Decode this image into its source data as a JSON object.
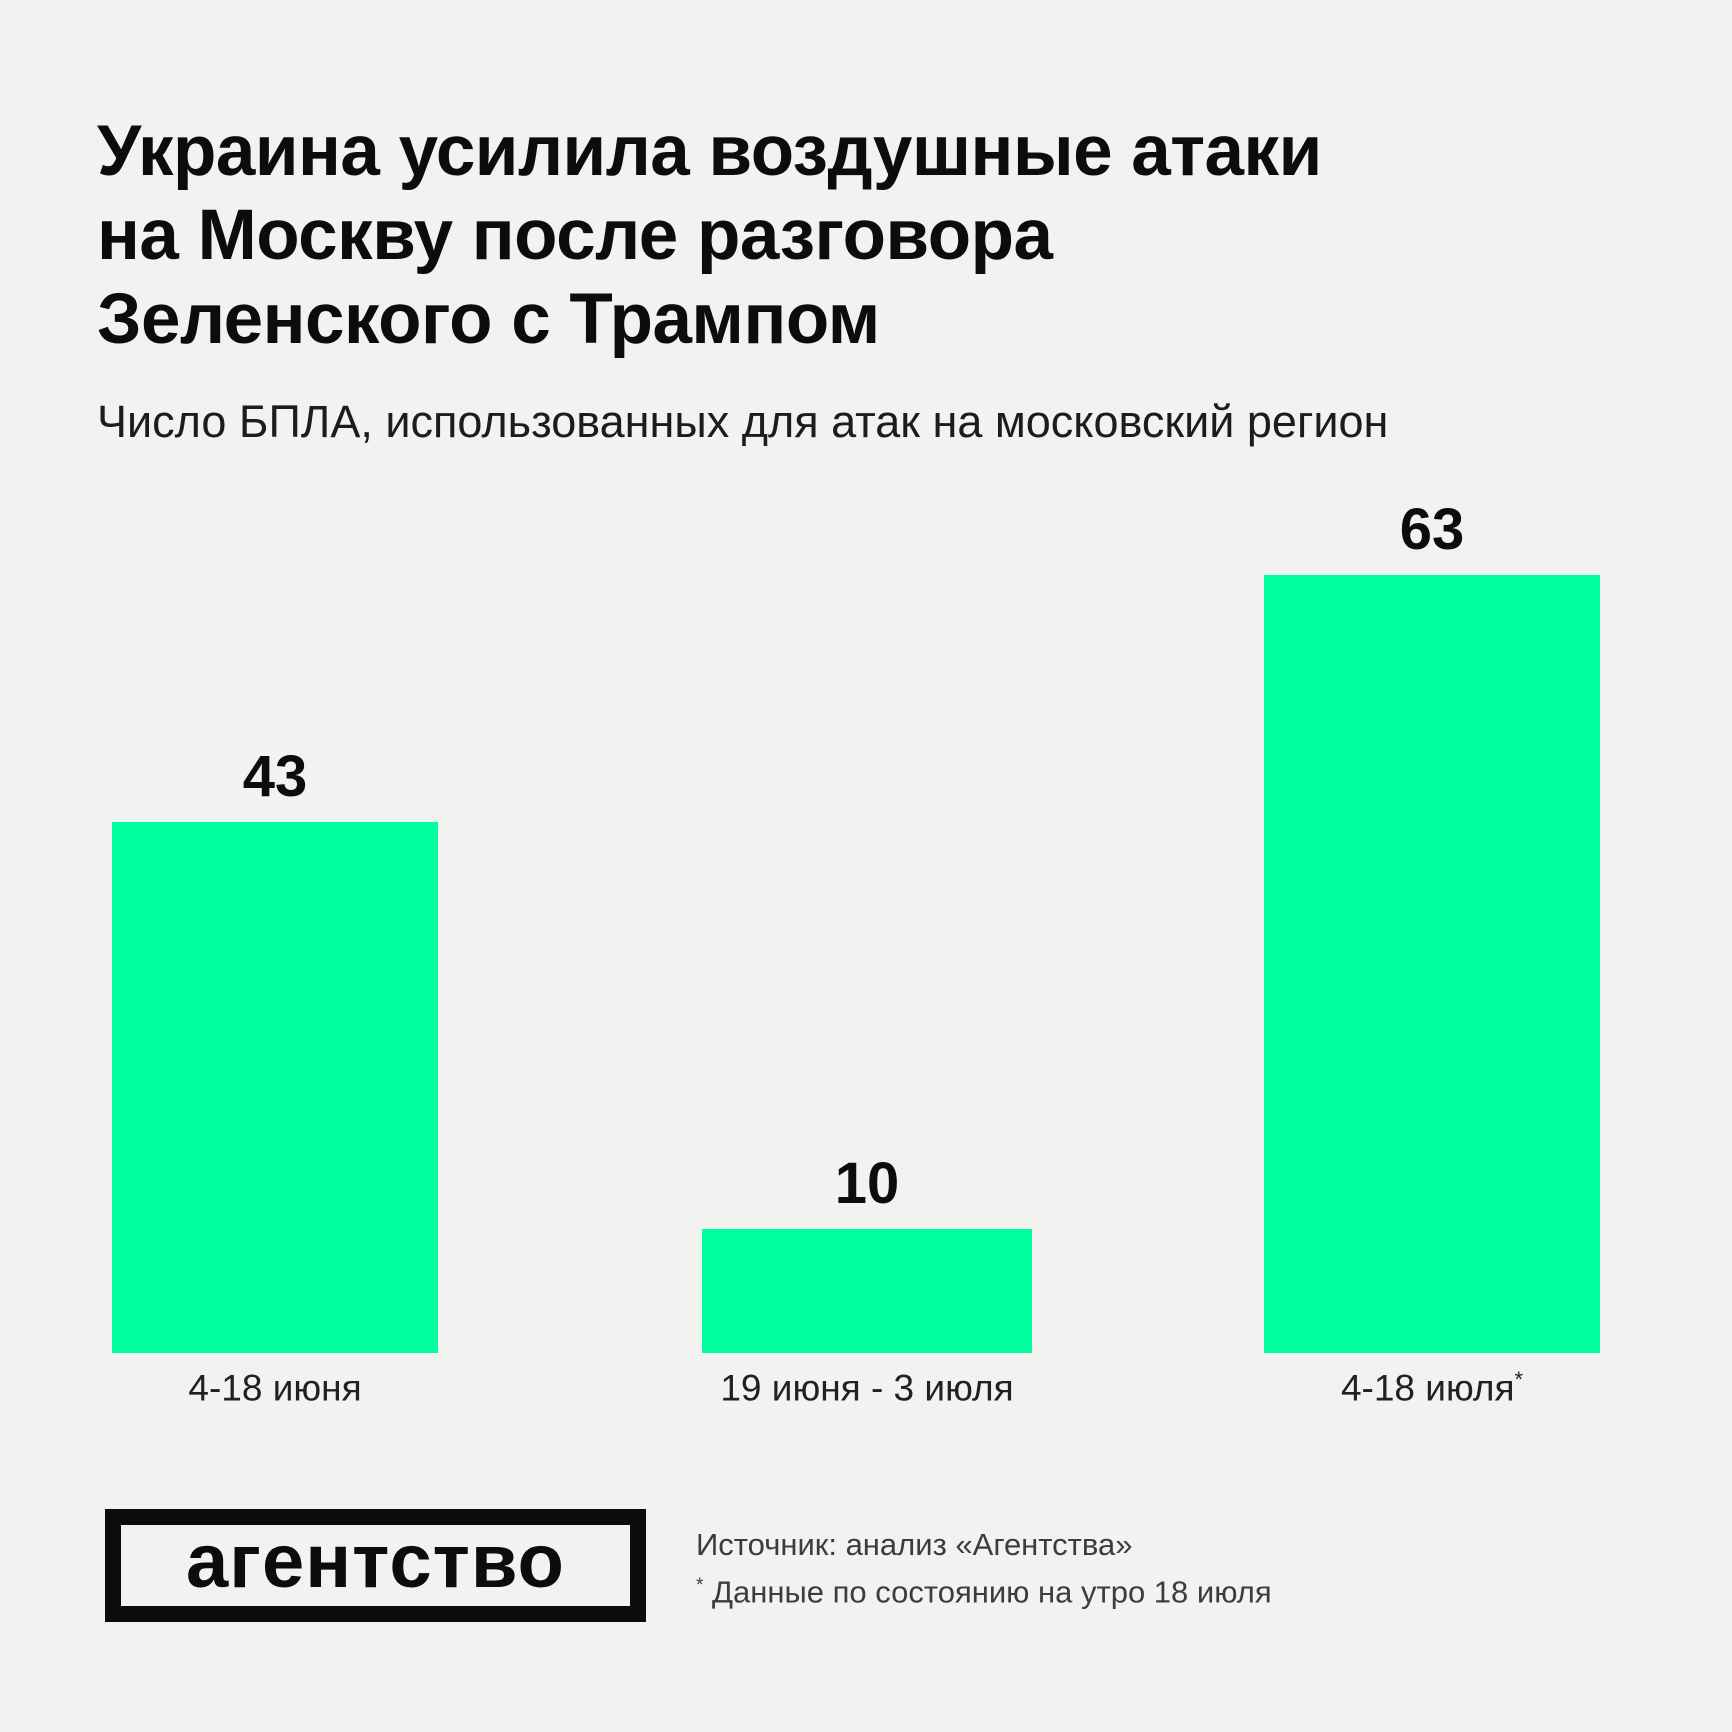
{
  "title": "Украина усилила воздушные атаки\nна Москву после разговора\nЗеленского с Трампом",
  "subtitle": "Число БПЛА, использованных для атак на московский регион",
  "chart_data": {
    "type": "bar",
    "title": "Украина усилила воздушные атаки на Москву после разговора Зеленского с Трампом",
    "subtitle": "Число БПЛА, использованных для атак на московский регион",
    "categories": [
      "4-18 июня",
      "19 июня - 3 июля",
      "4-18 июля"
    ],
    "category_suffixes": [
      "",
      "",
      "*"
    ],
    "values": [
      43,
      10,
      63
    ],
    "value_labels_shown": true,
    "xlabel": "",
    "ylabel": "",
    "ylim": [
      0,
      63
    ],
    "grid": false,
    "legend": "none"
  },
  "footer": {
    "logo_text": "агентство",
    "source_line": "Источник: анализ «Агентства»",
    "note_marker": "*",
    "note_text": "Данные по состоянию на утро 18 июля"
  },
  "colors": {
    "background": "#f2f2f0",
    "bar_green": "#00ff9e",
    "text_primary": "#0c0c0c",
    "text_secondary": "#3c3c3c"
  }
}
